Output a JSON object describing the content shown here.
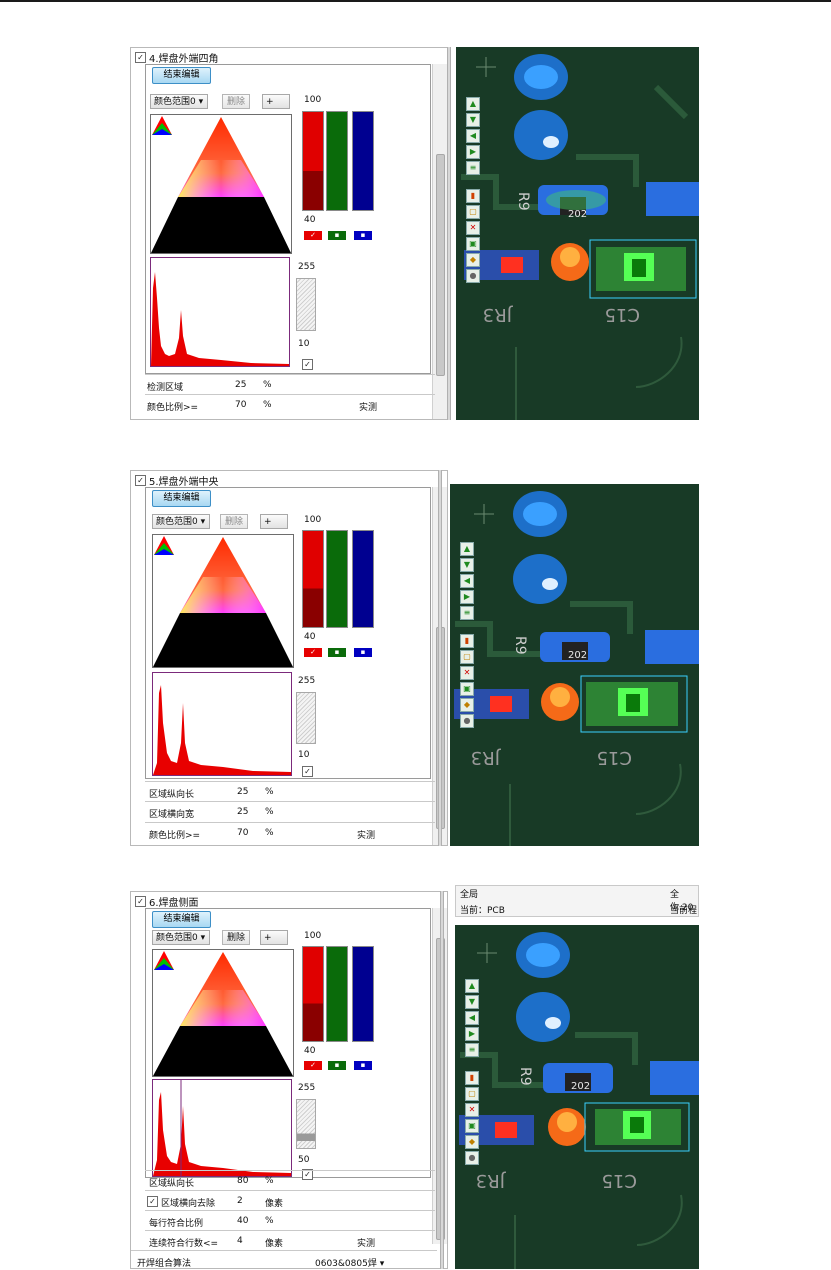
{
  "panels": [
    {
      "title": "4.焊盘外端四角",
      "end_edit": "结束编辑",
      "color_range": "颜色范围0 ▾",
      "delete": "删除",
      "op": "+",
      "bar_top": "100",
      "bar_bottom": "40",
      "gray_top": "255",
      "gray_bottom": "10",
      "rows": [
        {
          "label": "检测区域",
          "value": "25",
          "unit": "%"
        },
        {
          "label": "颜色比例>=",
          "value": "70",
          "unit": "%",
          "extra": "实测"
        }
      ]
    },
    {
      "title": "5.焊盘外端中央",
      "end_edit": "结束编辑",
      "color_range": "颜色范围0 ▾",
      "delete": "删除",
      "op": "+",
      "bar_top": "100",
      "bar_bottom": "40",
      "gray_top": "255",
      "gray_bottom": "10",
      "rows": [
        {
          "label": "区域纵向长",
          "value": "25",
          "unit": "%"
        },
        {
          "label": "区域横向宽",
          "value": "25",
          "unit": "%"
        },
        {
          "label": "颜色比例>=",
          "value": "70",
          "unit": "%",
          "extra": "实测"
        }
      ]
    },
    {
      "title": "6.焊盘侧面",
      "end_edit": "结束编辑",
      "color_range": "颜色范围0 ▾",
      "delete": "删除",
      "op": "+",
      "bar_top": "100",
      "bar_bottom": "40",
      "gray_top": "255",
      "gray_bottom": "50",
      "rows": [
        {
          "label": "区域纵向长",
          "value": "80",
          "unit": "%"
        },
        {
          "label": "区域横向去除",
          "value": "2",
          "unit": "像素"
        },
        {
          "label": "每行符合比例",
          "value": "40",
          "unit": "%"
        },
        {
          "label": "连续符合行数<=",
          "value": "4",
          "unit": "像素",
          "extra": "实测"
        }
      ],
      "footer_label": "开焊组合算法",
      "footer_value": "0603&0805焊 ▾"
    }
  ],
  "image3_header": {
    "row1_left": "全局",
    "row1_right": "全你.20",
    "row2_left": "当前：PCB",
    "row2_right": "当前程"
  },
  "pcb_labels": {
    "r9": "R9",
    "chip": "202",
    "c15": "C15",
    "jr3": "JR3"
  },
  "toolbar_icons": [
    "arrow-up-icon",
    "arrow-down-icon",
    "arrow-left-icon",
    "arrow-right-icon",
    "list-icon",
    "histogram-icon",
    "comment-icon",
    "delete-icon",
    "save-icon",
    "palette-icon",
    "lock-icon"
  ],
  "colors": {
    "red": "#e60000",
    "green": "#0a6b0a",
    "blue": "#000090",
    "pcb": "#183a26"
  }
}
